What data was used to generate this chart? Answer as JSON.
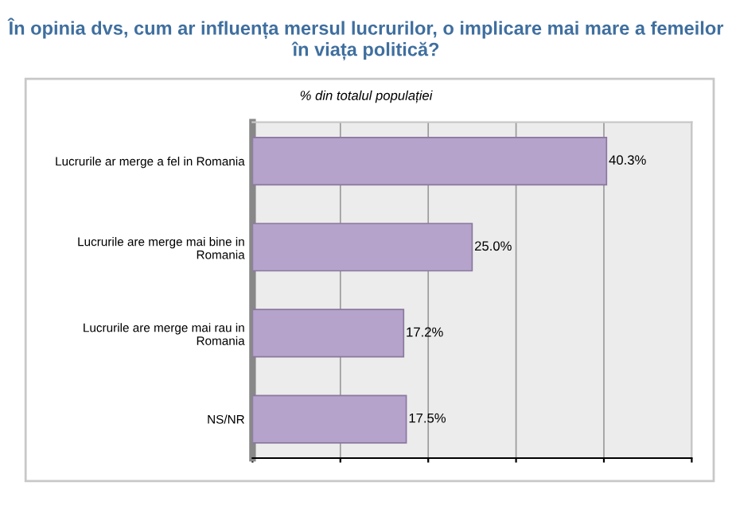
{
  "chart_data": {
    "type": "bar",
    "orientation": "horizontal",
    "title": "În opinia dvs, cum ar influența mersul lucrurilor, o implicare mai mare a femeilor în viața politică?",
    "subtitle": "% din totalul populației",
    "categories": [
      "Lucrurile ar merge a fel in Romania",
      "Lucrurile are merge mai bine in\nRomania",
      "Lucrurile are merge mai rau in\nRomania",
      "NS/NR"
    ],
    "values": [
      40.3,
      25.0,
      17.2,
      17.5
    ],
    "value_labels": [
      "40.3%",
      "25.0%",
      "17.2%",
      "17.5%"
    ],
    "color": "#b5a3cc",
    "xlim": [
      0,
      50
    ],
    "xticks": [
      {
        "value": 0,
        "label": null
      },
      {
        "value": 10,
        "label": null
      },
      {
        "value": 20,
        "label": null
      },
      {
        "value": 30,
        "label": null
      },
      {
        "value": 40,
        "label": null
      },
      {
        "value": 50,
        "label": null
      }
    ],
    "grid": "x"
  }
}
